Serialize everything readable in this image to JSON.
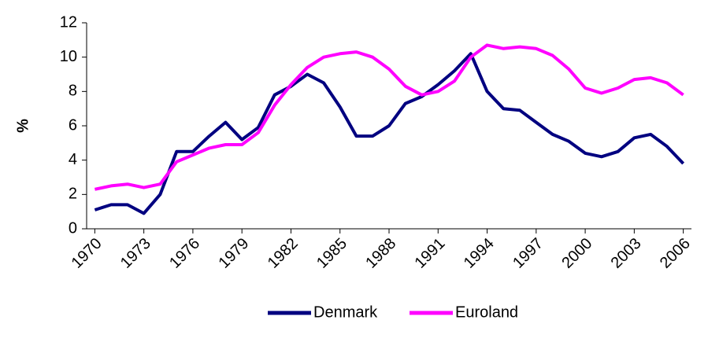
{
  "chart_data": {
    "type": "line",
    "y_label": "%",
    "x": [
      1970,
      1971,
      1972,
      1973,
      1974,
      1975,
      1976,
      1977,
      1978,
      1979,
      1980,
      1981,
      1982,
      1983,
      1984,
      1985,
      1986,
      1987,
      1988,
      1989,
      1990,
      1991,
      1992,
      1993,
      1994,
      1995,
      1996,
      1997,
      1998,
      1999,
      2000,
      2001,
      2002,
      2003,
      2004,
      2005,
      2006
    ],
    "xlim": [
      1969.5,
      2006.5
    ],
    "xticks": [
      1970,
      1973,
      1976,
      1979,
      1982,
      1985,
      1988,
      1991,
      1994,
      1997,
      2000,
      2003,
      2006
    ],
    "ylim": [
      0,
      12
    ],
    "yticks": [
      0,
      2,
      4,
      6,
      8,
      10,
      12
    ],
    "grid": false,
    "legend": "bottom",
    "series": [
      {
        "name": "Denmark",
        "color": "#000080",
        "values": [
          1.1,
          1.4,
          1.4,
          0.9,
          2.0,
          4.5,
          4.5,
          5.4,
          6.2,
          5.2,
          5.9,
          7.8,
          8.3,
          9.0,
          8.5,
          7.1,
          5.4,
          5.4,
          6.0,
          7.3,
          7.7,
          8.4,
          9.2,
          10.2,
          8.0,
          7.0,
          6.9,
          6.2,
          5.5,
          5.1,
          4.4,
          4.2,
          4.5,
          5.3,
          5.5,
          4.8,
          3.8
        ]
      },
      {
        "name": "Euroland",
        "color": "#ff00ff",
        "values": [
          2.3,
          2.5,
          2.6,
          2.4,
          2.6,
          3.9,
          4.3,
          4.7,
          4.9,
          4.9,
          5.6,
          7.2,
          8.4,
          9.4,
          10.0,
          10.2,
          10.3,
          10.0,
          9.3,
          8.3,
          7.8,
          8.0,
          8.6,
          10.0,
          10.7,
          10.5,
          10.6,
          10.5,
          10.1,
          9.3,
          8.2,
          7.9,
          8.2,
          8.7,
          8.8,
          8.5,
          7.8
        ]
      }
    ]
  }
}
